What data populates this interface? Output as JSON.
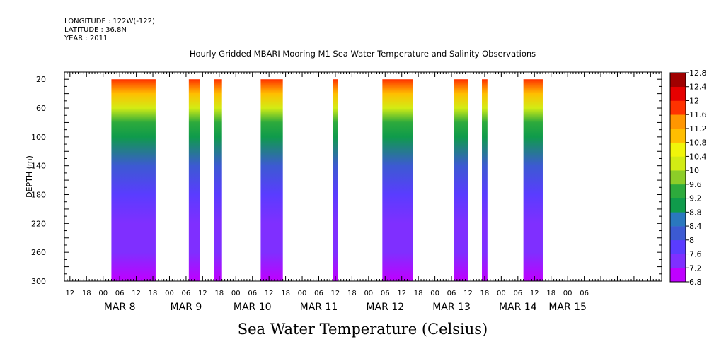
{
  "header": {
    "longitude": "LONGITUDE : 122W(-122)",
    "latitude": "LATITUDE : 36.8N",
    "year": "YEAR : 2011"
  },
  "chart_data": {
    "type": "heatmap",
    "title": "Hourly Gridded MBARI Mooring M1 Sea Water Temperature and Salinity Observations",
    "colorbar_title": "Sea Water Temperature (Celsius)",
    "ylabel": "DEPTH (m)",
    "ylim": [
      300,
      10
    ],
    "y_ticks": [
      20,
      60,
      100,
      140,
      180,
      220,
      260,
      300
    ],
    "x_range_hours": [
      -32,
      184
    ],
    "x_hour_labels": [
      "12",
      "18",
      "00",
      "06",
      "12",
      "18",
      "00",
      "06",
      "12",
      "18",
      "00",
      "06",
      "12",
      "18",
      "00",
      "06",
      "12",
      "18",
      "00",
      "06",
      "12",
      "18",
      "00",
      "06",
      "12",
      "18",
      "00",
      "06",
      "12",
      "18",
      "00",
      "06"
    ],
    "x_day_labels": [
      {
        "label": "MAR  8",
        "hour": -12
      },
      {
        "label": "MAR  9",
        "hour": 12
      },
      {
        "label": "MAR 10",
        "hour": 36
      },
      {
        "label": "MAR 11",
        "hour": 60
      },
      {
        "label": "MAR 12",
        "hour": 84
      },
      {
        "label": "MAR 13",
        "hour": 108
      },
      {
        "label": "MAR 14",
        "hour": 132
      },
      {
        "label": "MAR 15",
        "hour": 150
      }
    ],
    "colorbar_levels": [
      6.8,
      7.2,
      7.6,
      8,
      8.4,
      8.8,
      9.2,
      9.6,
      10,
      10.4,
      10.8,
      11.2,
      11.6,
      12,
      12.4,
      12.8
    ],
    "colors": [
      "#bf00ff",
      "#9f1fff",
      "#7f2fff",
      "#5a3cff",
      "#4646f0",
      "#3c5ad2",
      "#2a78be",
      "#198c7d",
      "#0f9b4b",
      "#2daa3c",
      "#55bb32",
      "#8ccd28",
      "#b4dc1e",
      "#d2ec14",
      "#f0f50a",
      "#ffe600",
      "#ffbe00",
      "#ff9600",
      "#ff6400",
      "#ff3200",
      "#e60000",
      "#c80000",
      "#a00000"
    ],
    "gradient_profile": [
      {
        "depth": 20,
        "temp": 11.9
      },
      {
        "depth": 40,
        "temp": 11.0
      },
      {
        "depth": 60,
        "temp": 10.1
      },
      {
        "depth": 80,
        "temp": 9.4
      },
      {
        "depth": 100,
        "temp": 8.9
      },
      {
        "depth": 140,
        "temp": 8.3
      },
      {
        "depth": 180,
        "temp": 7.8
      },
      {
        "depth": 220,
        "temp": 7.5
      },
      {
        "depth": 260,
        "temp": 7.2
      },
      {
        "depth": 300,
        "temp": 6.9
      }
    ],
    "data_segments_hours": [
      [
        -15,
        1
      ],
      [
        13,
        17
      ],
      [
        22,
        25
      ],
      [
        39,
        47
      ],
      [
        65,
        67
      ],
      [
        83,
        94
      ],
      [
        109,
        114
      ],
      [
        119,
        121
      ],
      [
        134,
        141
      ]
    ]
  }
}
